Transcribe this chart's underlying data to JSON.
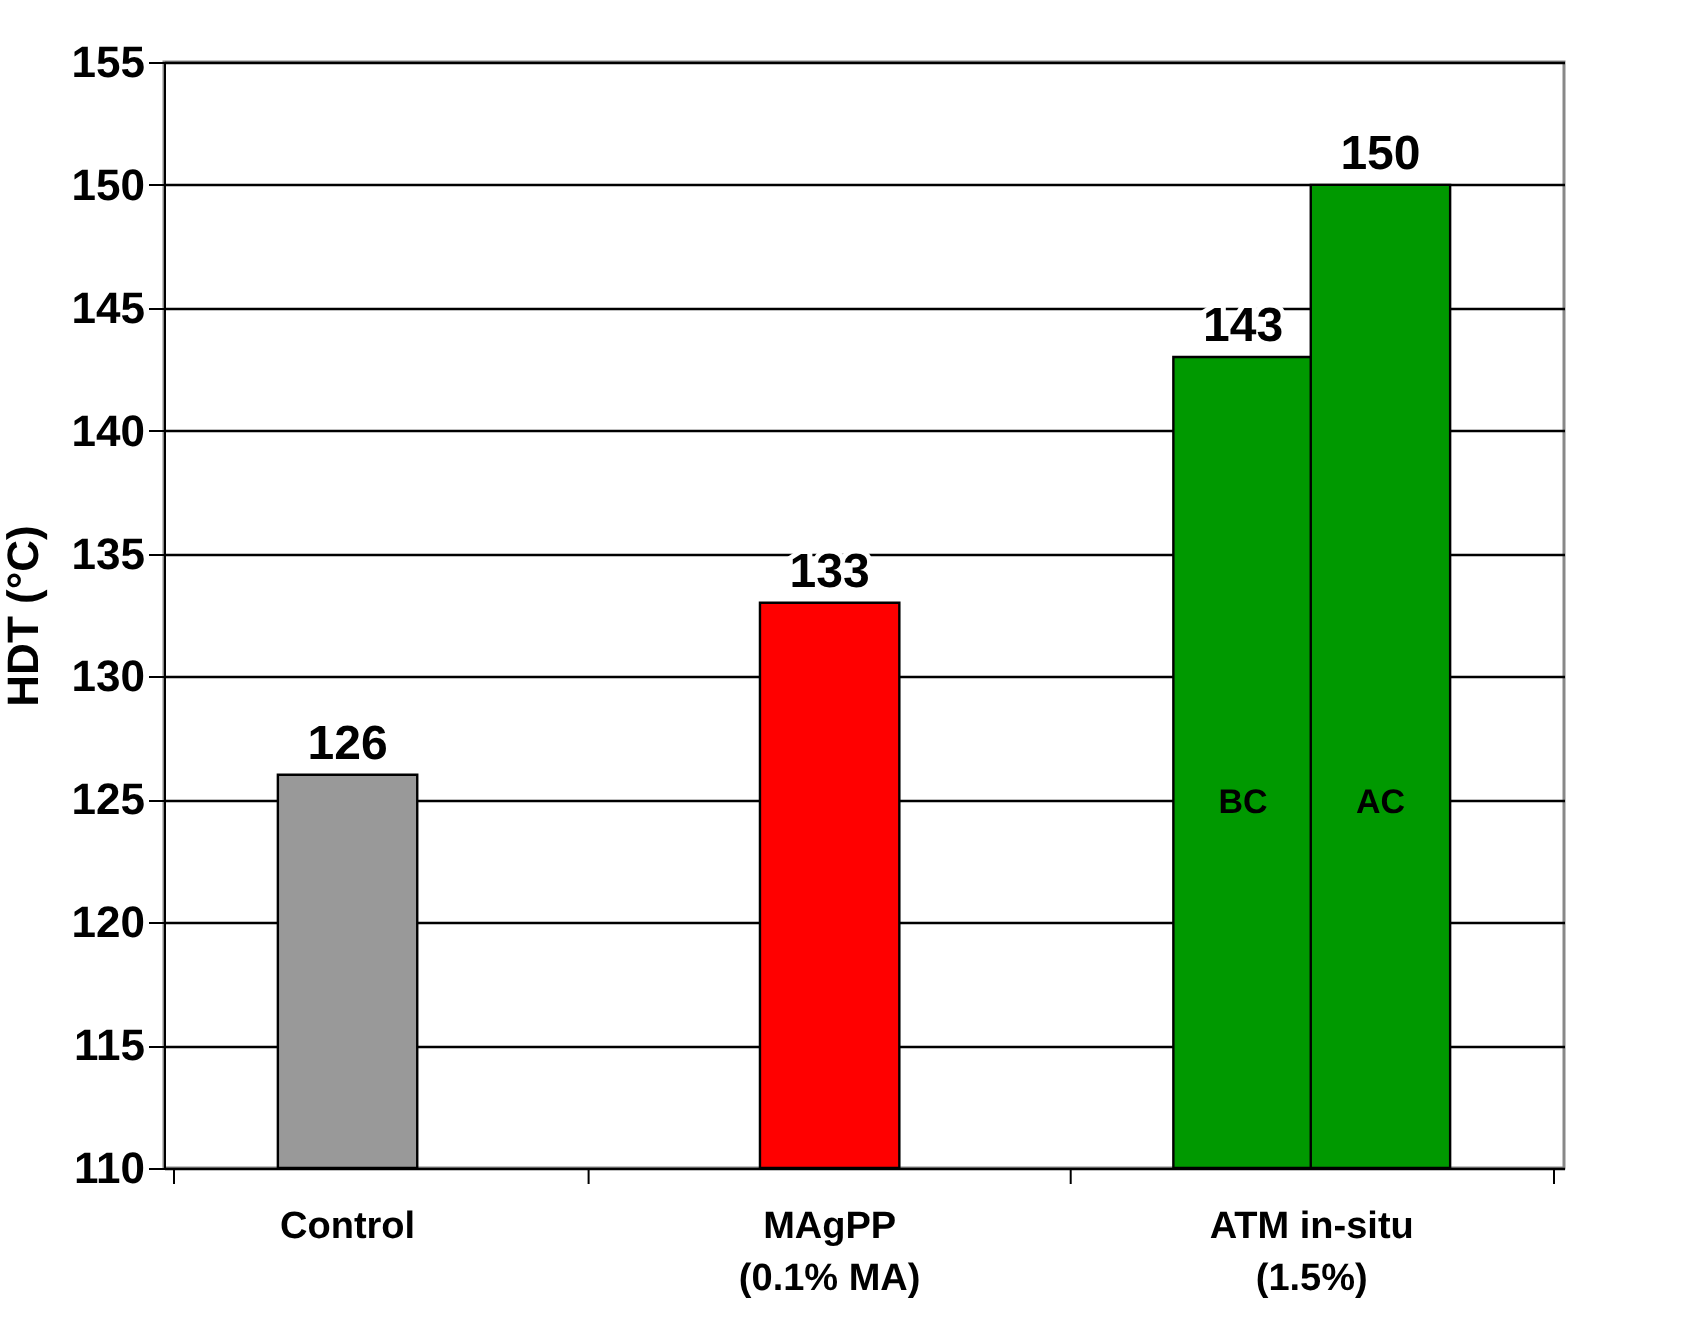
{
  "chart_data": {
    "type": "bar",
    "ylabel": "HDT (°C)",
    "categories": [
      "Control",
      "MAgPP\n(0.1% MA)",
      "ATM in-situ\n(1.5%)"
    ],
    "series": [
      {
        "colors": [
          "#999999",
          "#ff0000",
          "#009900"
        ],
        "values": [
          126,
          133,
          143
        ]
      },
      {
        "color": "#009900",
        "values": [
          null,
          null,
          150
        ]
      }
    ],
    "ylim": [
      110,
      155
    ],
    "yticks": [
      110,
      115,
      120,
      125,
      130,
      135,
      140,
      145,
      150,
      155
    ],
    "grid": "y",
    "data_labels": true,
    "annotations": [
      "BC",
      "AC"
    ]
  }
}
